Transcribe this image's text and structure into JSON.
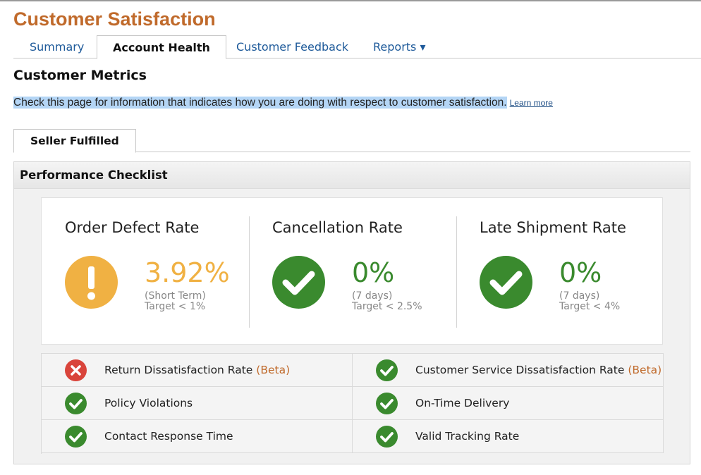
{
  "page_title": "Customer Satisfaction",
  "tabs": [
    {
      "label": "Summary"
    },
    {
      "label": "Account Health"
    },
    {
      "label": "Customer Feedback"
    },
    {
      "label": "Reports ▾"
    }
  ],
  "section_title": "Customer Metrics",
  "intro": {
    "text": "Check this page for information that indicates how you are doing with respect to customer satisfaction.",
    "link": "Learn more"
  },
  "subtab": "Seller Fulfilled",
  "panel_title": "Performance Checklist",
  "metrics": [
    {
      "name": "Order Defect Rate",
      "value": "3.92%",
      "period": "(Short Term)",
      "target": "Target < 1%",
      "status": "warning",
      "color": "#f0b143"
    },
    {
      "name": "Cancellation Rate",
      "value": "0%",
      "period": "(7 days)",
      "target": "Target < 2.5%",
      "status": "ok",
      "color": "#3a8a2e"
    },
    {
      "name": "Late Shipment Rate",
      "value": "0%",
      "period": "(7 days)",
      "target": "Target < 4%",
      "status": "ok",
      "color": "#3a8a2e"
    }
  ],
  "checklist": [
    {
      "label": "Return Dissatisfaction Rate",
      "beta": "(Beta)",
      "status": "error"
    },
    {
      "label": "Customer Service Dissatisfaction Rate",
      "beta": "(Beta)",
      "status": "ok"
    },
    {
      "label": "Policy Violations",
      "beta": "",
      "status": "ok"
    },
    {
      "label": "On-Time Delivery",
      "beta": "",
      "status": "ok"
    },
    {
      "label": "Contact Response Time",
      "beta": "",
      "status": "ok"
    },
    {
      "label": "Valid Tracking Rate",
      "beta": "",
      "status": "ok"
    }
  ],
  "colors": {
    "brand": "#c06a2b",
    "ok": "#3a8a2e",
    "error": "#d9443b",
    "warning": "#f0b143",
    "link": "#1e5a9a"
  }
}
